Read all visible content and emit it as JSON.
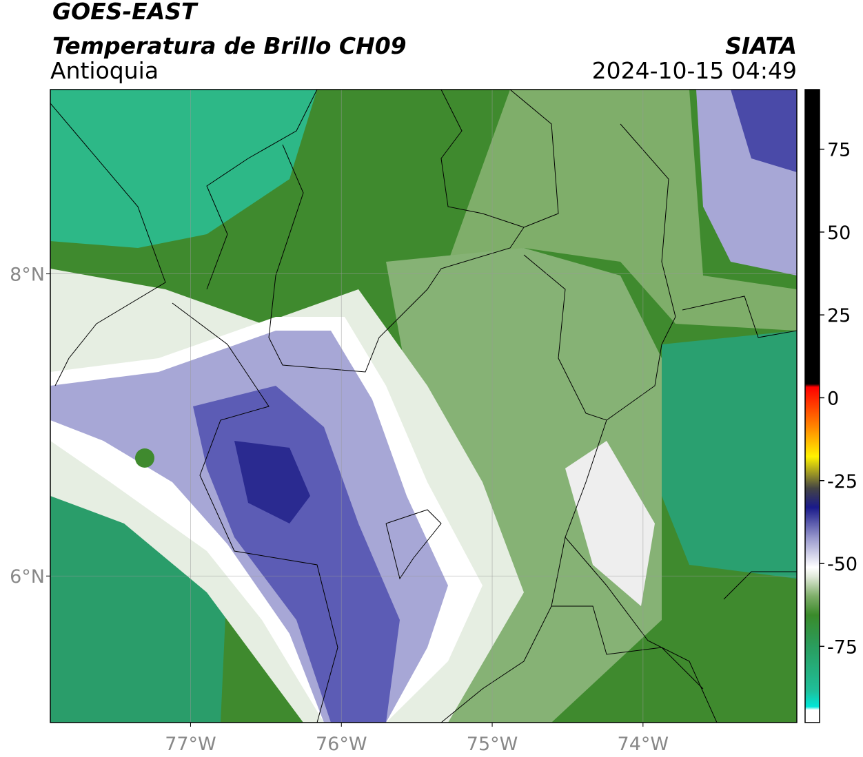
{
  "header": {
    "title": "GOES-EAST",
    "subtitle": "Temperatura de Brillo CH09",
    "region": "Antioquia",
    "source": "SIATA",
    "datetime": "2024-10-15 04:49"
  },
  "map": {
    "xlim": [
      -77.93,
      -72.98
    ],
    "ylim": [
      5.03,
      9.22
    ],
    "xticks": [
      {
        "value": -77,
        "label": "77°W"
      },
      {
        "value": -76,
        "label": "76°W"
      },
      {
        "value": -75,
        "label": "75°W"
      },
      {
        "value": -74,
        "label": "74°W"
      }
    ],
    "yticks": [
      {
        "value": 8,
        "label": "8°N"
      },
      {
        "value": 6,
        "label": "6°N"
      }
    ],
    "grid": true
  },
  "colorbar": {
    "lim": [
      -98,
      93
    ],
    "ticks": [
      75,
      50,
      25,
      0,
      -25,
      -50,
      -75
    ]
  }
}
